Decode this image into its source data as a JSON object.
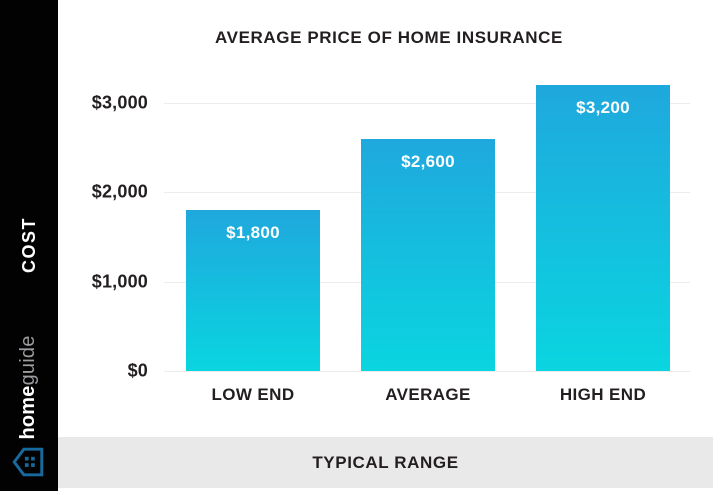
{
  "sidebar": {
    "cost_label": "COST",
    "brand_home": "home",
    "brand_guide": "guide",
    "colors": {
      "bg": "#020202",
      "cost_text": "#FFFFFF",
      "home_text": "#FFFFFF",
      "guide_text": "#9B9DA0",
      "house_icon_blue": "#176A9E"
    }
  },
  "chart_data": {
    "type": "bar",
    "title": "AVERAGE PRICE OF HOME INSURANCE",
    "categories": [
      "LOW END",
      "AVERAGE",
      "HIGH END"
    ],
    "values": [
      1800,
      2600,
      3200
    ],
    "value_labels": [
      "$1,800",
      "$2,600",
      "$3,200"
    ],
    "y_ticks": [
      {
        "value": 0,
        "label": "$0"
      },
      {
        "value": 1000,
        "label": "$1,000"
      },
      {
        "value": 2000,
        "label": "$2,000"
      },
      {
        "value": 3000,
        "label": "$3,000"
      }
    ],
    "ylim": [
      0,
      3200
    ],
    "xlabel": "TYPICAL RANGE",
    "ylabel": "COST",
    "grid": true,
    "legend": "none",
    "colors": {
      "bar_gradient_top": "#1FA8DD",
      "bar_gradient_bottom": "#0AD5E0",
      "grid_line": "#ECECEC",
      "axis_text": "#231F20",
      "value_text": "#FFFFFF"
    }
  },
  "footer": {
    "label": "TYPICAL RANGE",
    "bg": "#E9E9E9"
  }
}
